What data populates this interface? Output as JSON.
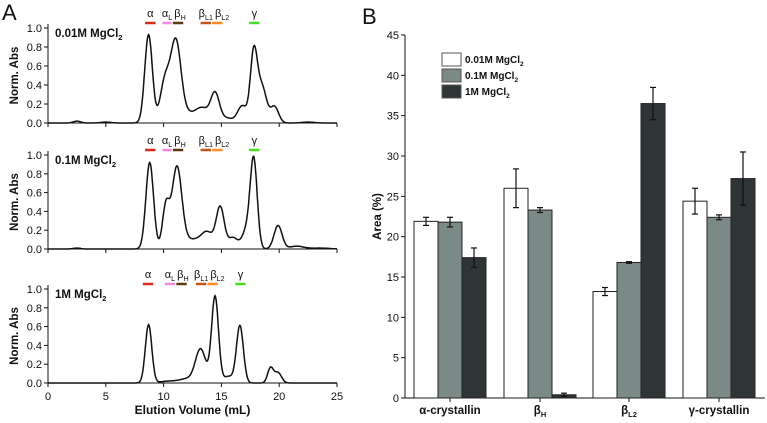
{
  "chart_data": [
    {
      "panel": "A",
      "type": "line",
      "xlabel": "Elution Volume (mL)",
      "ylabel": "Norm. Abs",
      "xlim": [
        0,
        25
      ],
      "ylim": [
        0,
        1.0
      ],
      "xticks": [
        "0",
        "5",
        "10",
        "15",
        "20",
        "25"
      ],
      "yticks": [
        "0.0",
        "0.2",
        "0.4",
        "0.6",
        "0.8",
        "1.0"
      ],
      "fraction_colors": {
        "alpha": "#d42a1e",
        "alphaL": "#f28be0",
        "betaH": "#5b3a12",
        "betaL1": "#c4541c",
        "betaL2": "#ff8c22",
        "gamma": "#45e024"
      },
      "subplots": [
        {
          "title": {
            "main": "0.01M MgCl",
            "sub": "2"
          },
          "fractions": [
            {
              "key": "alpha",
              "label": "α",
              "sub": "",
              "range": [
                8.4,
                9.3
              ]
            },
            {
              "key": "alphaL",
              "label": "α",
              "sub": "L",
              "range": [
                9.9,
                10.7
              ]
            },
            {
              "key": "betaH",
              "label": "β",
              "sub": "H",
              "range": [
                10.8,
                11.7
              ]
            },
            {
              "key": "betaL1",
              "label": "β",
              "sub": "L1",
              "range": [
                13.2,
                14.1
              ]
            },
            {
              "key": "betaL2",
              "label": "β",
              "sub": "L2",
              "range": [
                14.2,
                15.1
              ]
            },
            {
              "key": "gamma",
              "label": "γ",
              "sub": "",
              "range": [
                17.4,
                18.3
              ]
            }
          ],
          "peaks": [
            [
              2.5,
              0.02,
              0.3
            ],
            [
              5.0,
              0.01,
              0.4
            ],
            [
              8.7,
              0.93,
              0.33
            ],
            [
              10.1,
              0.42,
              0.4
            ],
            [
              11.05,
              0.84,
              0.45
            ],
            [
              12.3,
              0.1,
              0.8
            ],
            [
              13.4,
              0.12,
              0.5
            ],
            [
              14.45,
              0.31,
              0.38
            ],
            [
              15.5,
              0.05,
              0.5
            ],
            [
              16.8,
              0.18,
              0.4
            ],
            [
              17.8,
              0.72,
              0.3
            ],
            [
              18.5,
              0.38,
              0.4
            ],
            [
              19.6,
              0.17,
              0.35
            ],
            [
              22.5,
              0.01,
              0.5
            ]
          ]
        },
        {
          "title": {
            "main": "0.1M MgCl",
            "sub": "2"
          },
          "fractions": [
            {
              "key": "alpha",
              "label": "α",
              "sub": "",
              "range": [
                8.4,
                9.3
              ]
            },
            {
              "key": "alphaL",
              "label": "α",
              "sub": "L",
              "range": [
                9.9,
                10.7
              ]
            },
            {
              "key": "betaH",
              "label": "β",
              "sub": "H",
              "range": [
                10.8,
                11.7
              ]
            },
            {
              "key": "betaL1",
              "label": "β",
              "sub": "L1",
              "range": [
                13.2,
                14.1
              ]
            },
            {
              "key": "betaL2",
              "label": "β",
              "sub": "L2",
              "range": [
                14.2,
                15.1
              ]
            },
            {
              "key": "gamma",
              "label": "γ",
              "sub": "",
              "range": [
                17.4,
                18.3
              ]
            }
          ],
          "peaks": [
            [
              2.5,
              0.01,
              0.3
            ],
            [
              8.8,
              0.92,
              0.33
            ],
            [
              10.2,
              0.45,
              0.3
            ],
            [
              11.15,
              0.85,
              0.42
            ],
            [
              12.5,
              0.1,
              0.9
            ],
            [
              13.8,
              0.15,
              0.5
            ],
            [
              14.9,
              0.44,
              0.35
            ],
            [
              16.0,
              0.12,
              0.4
            ],
            [
              17.2,
              0.2,
              0.4
            ],
            [
              17.8,
              0.92,
              0.3
            ],
            [
              19.9,
              0.25,
              0.35
            ],
            [
              21.5,
              0.03,
              0.6
            ],
            [
              23.5,
              0.01,
              0.8
            ]
          ]
        },
        {
          "title": {
            "main": "1M MgCl",
            "sub": "2"
          },
          "fractions": [
            {
              "key": "alpha",
              "label": "α",
              "sub": "",
              "range": [
                8.2,
                9.1
              ]
            },
            {
              "key": "alphaL",
              "label": "α",
              "sub": "L",
              "range": [
                10.1,
                11.0
              ]
            },
            {
              "key": "betaH",
              "label": "β",
              "sub": "H",
              "range": [
                11.1,
                12.0
              ]
            },
            {
              "key": "betaL1",
              "label": "β",
              "sub": "L1",
              "range": [
                12.8,
                13.7
              ]
            },
            {
              "key": "betaL2",
              "label": "β",
              "sub": "L2",
              "range": [
                13.8,
                14.7
              ]
            },
            {
              "key": "gamma",
              "label": "γ",
              "sub": "",
              "range": [
                16.2,
                17.1
              ]
            }
          ],
          "peaks": [
            [
              8.7,
              0.62,
              0.28
            ],
            [
              10.5,
              0.02,
              0.8
            ],
            [
              12.0,
              0.04,
              0.6
            ],
            [
              13.2,
              0.36,
              0.45
            ],
            [
              14.45,
              0.92,
              0.3
            ],
            [
              15.6,
              0.07,
              0.4
            ],
            [
              16.6,
              0.61,
              0.3
            ],
            [
              19.25,
              0.16,
              0.25
            ],
            [
              19.9,
              0.11,
              0.3
            ]
          ]
        }
      ]
    },
    {
      "panel": "B",
      "type": "bar",
      "ylabel": "Area (%)",
      "ylim": [
        0,
        45
      ],
      "yticks": [
        "0",
        "5",
        "10",
        "15",
        "20",
        "25",
        "30",
        "35",
        "40",
        "45"
      ],
      "legend_position": "top-left",
      "categories": [
        {
          "main": "α-crystallin",
          "sub": ""
        },
        {
          "main": "β",
          "sub": "H"
        },
        {
          "main": "β",
          "sub": "L2"
        },
        {
          "main": "γ-crystallin",
          "sub": ""
        }
      ],
      "series": [
        {
          "name": "0.01M MgCl",
          "sub": "2",
          "color": "#ffffff",
          "values": [
            21.9,
            26.0,
            13.2,
            24.4
          ],
          "errors": [
            0.5,
            2.4,
            0.5,
            1.6
          ]
        },
        {
          "name": "0.1M MgCl",
          "sub": "2",
          "color": "#7c8a87",
          "values": [
            21.8,
            23.3,
            16.8,
            22.4
          ],
          "errors": [
            0.6,
            0.3,
            0.1,
            0.3
          ]
        },
        {
          "name": "1M MgCl",
          "sub": "2",
          "color": "#2f3536",
          "values": [
            17.4,
            0.4,
            36.5,
            27.2
          ],
          "errors": [
            1.2,
            0.2,
            2.0,
            3.3
          ]
        }
      ]
    }
  ],
  "panel_labels": {
    "a": "A",
    "b": "B"
  }
}
